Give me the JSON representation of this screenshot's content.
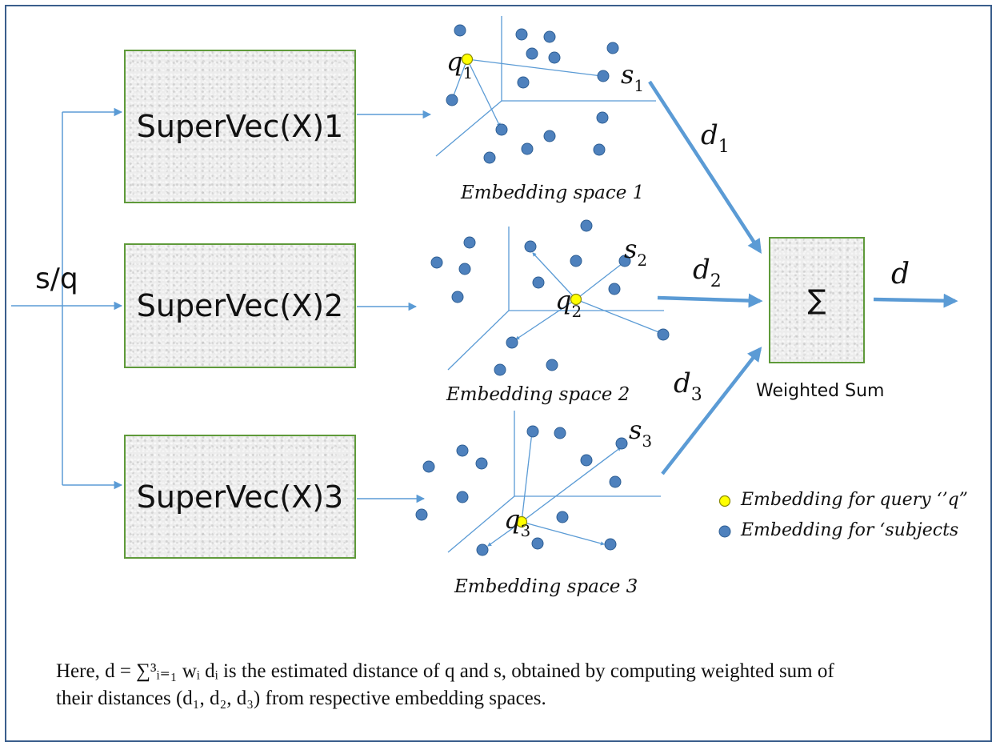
{
  "input_label": "s/q",
  "boxes": {
    "b1": "SuperVec(X)1",
    "b2": "SuperVec(X)2",
    "b3": "SuperVec(X)3"
  },
  "spaces": {
    "c1": "Embedding space 1",
    "c2": "Embedding space 2",
    "c3": "Embedding space 3"
  },
  "math": {
    "q": "q",
    "s": "s",
    "d": "d",
    "one": "1",
    "two": "2",
    "three": "3"
  },
  "sum": {
    "symbol": "∑",
    "label": "Weighted Sum",
    "output": "d"
  },
  "legend": {
    "query": "Embedding for query ‘’q”",
    "subjects": "Embedding for ‘subjects"
  },
  "footer": {
    "line1": "Here, d = ∑³ᵢ₌₁ wᵢ dᵢ is the estimated distance of q and s, obtained by computing weighted sum of",
    "line2": "their distances (d₁, d₂, d₃)  from respective embedding spaces."
  },
  "colors": {
    "frame": "#3a5e8c",
    "arrow": "#5b9bd5",
    "point": "#4e81bd",
    "point_outline": "#2f5f94",
    "query_point": "#ffff00",
    "box_border": "#5f9a3a"
  }
}
